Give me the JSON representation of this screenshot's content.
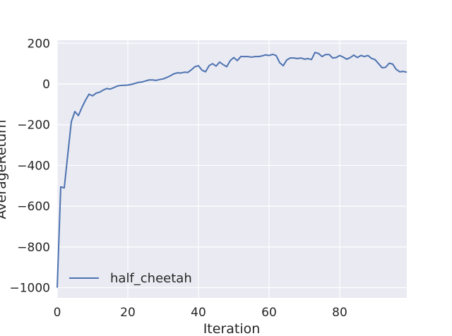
{
  "chart_data": {
    "type": "line",
    "xlabel": "Iteration",
    "ylabel": "AverageReturn",
    "xlim": [
      0,
      99
    ],
    "ylim": [
      -1050,
      215
    ],
    "xticks": [
      0,
      20,
      40,
      60,
      80
    ],
    "yticks": [
      200,
      0,
      -200,
      -400,
      -600,
      -800,
      -1000
    ],
    "grid": true,
    "legend_position": "lower-left",
    "colors": {
      "background": "#eaeaf2",
      "grid": "#ffffff",
      "series": "#4c72b0"
    },
    "series": [
      {
        "name": "half_cheetah",
        "x": [
          0,
          1,
          2,
          3,
          4,
          5,
          6,
          7,
          8,
          9,
          10,
          11,
          12,
          13,
          14,
          15,
          16,
          17,
          18,
          19,
          20,
          21,
          22,
          23,
          24,
          25,
          26,
          27,
          28,
          29,
          30,
          31,
          32,
          33,
          34,
          35,
          36,
          37,
          38,
          39,
          40,
          41,
          42,
          43,
          44,
          45,
          46,
          47,
          48,
          49,
          50,
          51,
          52,
          53,
          54,
          55,
          56,
          57,
          58,
          59,
          60,
          61,
          62,
          63,
          64,
          65,
          66,
          67,
          68,
          69,
          70,
          71,
          72,
          73,
          74,
          75,
          76,
          77,
          78,
          79,
          80,
          81,
          82,
          83,
          84,
          85,
          86,
          87,
          88,
          89,
          90,
          91,
          92,
          93,
          94,
          95,
          96,
          97,
          98,
          99
        ],
        "y": [
          -1000,
          -505,
          -510,
          -345,
          -185,
          -135,
          -155,
          -115,
          -80,
          -50,
          -58,
          -45,
          -40,
          -30,
          -22,
          -25,
          -18,
          -10,
          -7,
          -6,
          -5,
          -2,
          3,
          8,
          10,
          15,
          20,
          20,
          18,
          22,
          25,
          32,
          40,
          50,
          55,
          54,
          58,
          57,
          70,
          85,
          90,
          68,
          60,
          90,
          100,
          88,
          108,
          95,
          85,
          115,
          130,
          115,
          135,
          135,
          135,
          132,
          135,
          135,
          138,
          143,
          140,
          146,
          140,
          105,
          90,
          118,
          128,
          128,
          125,
          128,
          122,
          125,
          120,
          155,
          150,
          135,
          145,
          145,
          128,
          130,
          140,
          132,
          122,
          130,
          142,
          130,
          140,
          135,
          140,
          126,
          120,
          100,
          80,
          82,
          102,
          98,
          72,
          60,
          62,
          58
        ]
      }
    ]
  }
}
